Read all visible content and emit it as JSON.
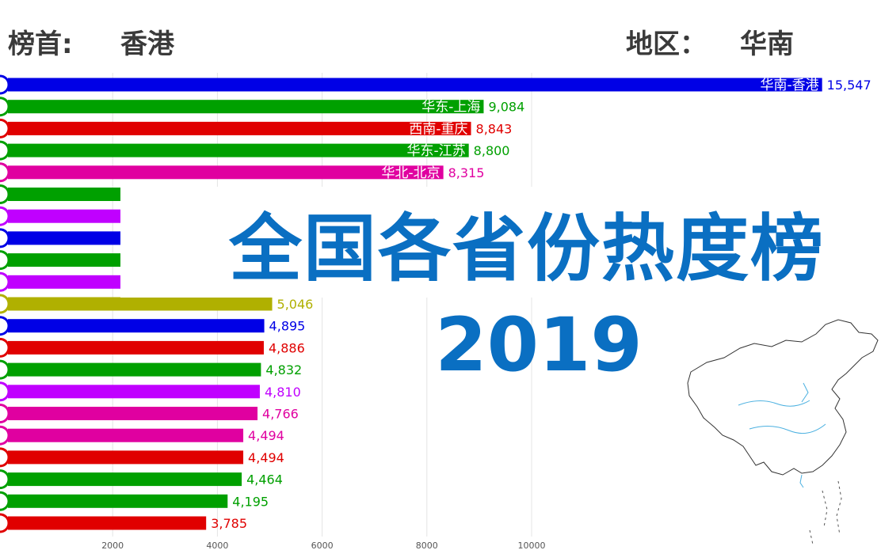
{
  "header": {
    "top_label": "榜首:",
    "top_value": "香港",
    "region_label": "地区：",
    "region_value": "华南"
  },
  "overlay": {
    "title": "全国各省份热度榜",
    "year": "2019"
  },
  "chart_data": {
    "type": "bar",
    "orientation": "horizontal",
    "xlim": [
      0,
      16000
    ],
    "xticks": [
      2000,
      4000,
      6000,
      8000,
      10000
    ],
    "grid": true,
    "bars": [
      {
        "label": "华南-香港",
        "value": 15547,
        "value_text": "15,547",
        "color": "#0000e6"
      },
      {
        "label": "华东-上海",
        "value": 9084,
        "value_text": "9,084",
        "color": "#00a000"
      },
      {
        "label": "西南-重庆",
        "value": 8843,
        "value_text": "8,843",
        "color": "#e00000"
      },
      {
        "label": "华东-江苏",
        "value": 8800,
        "value_text": "8,800",
        "color": "#00a000"
      },
      {
        "label": "华北-北京",
        "value": 8315,
        "value_text": "8,315",
        "color": "#e000a0"
      },
      {
        "label": "",
        "value": 2150,
        "value_text": "",
        "color": "#00a000"
      },
      {
        "label": "",
        "value": 2150,
        "value_text": "",
        "color": "#c000ff"
      },
      {
        "label": "",
        "value": 2150,
        "value_text": "",
        "color": "#0000e6"
      },
      {
        "label": "",
        "value": 2150,
        "value_text": "",
        "color": "#00a000"
      },
      {
        "label": "",
        "value": 2150,
        "value_text": "",
        "color": "#c000ff"
      },
      {
        "label": "",
        "value": 5046,
        "value_text": "5,046",
        "color": "#b0b000"
      },
      {
        "label": "",
        "value": 4895,
        "value_text": "4,895",
        "color": "#0000e6"
      },
      {
        "label": "",
        "value": 4886,
        "value_text": "4,886",
        "color": "#e00000"
      },
      {
        "label": "",
        "value": 4832,
        "value_text": "4,832",
        "color": "#00a000"
      },
      {
        "label": "",
        "value": 4810,
        "value_text": "4,810",
        "color": "#c000ff"
      },
      {
        "label": "",
        "value": 4766,
        "value_text": "4,766",
        "color": "#e000a0"
      },
      {
        "label": "",
        "value": 4494,
        "value_text": "4,494",
        "color": "#e000a0"
      },
      {
        "label": "",
        "value": 4494,
        "value_text": "4,494",
        "color": "#e00000"
      },
      {
        "label": "",
        "value": 4464,
        "value_text": "4,464",
        "color": "#00a000"
      },
      {
        "label": "",
        "value": 4195,
        "value_text": "4,195",
        "color": "#00a000"
      },
      {
        "label": "",
        "value": 3785,
        "value_text": "3,785",
        "color": "#e00000"
      }
    ]
  }
}
